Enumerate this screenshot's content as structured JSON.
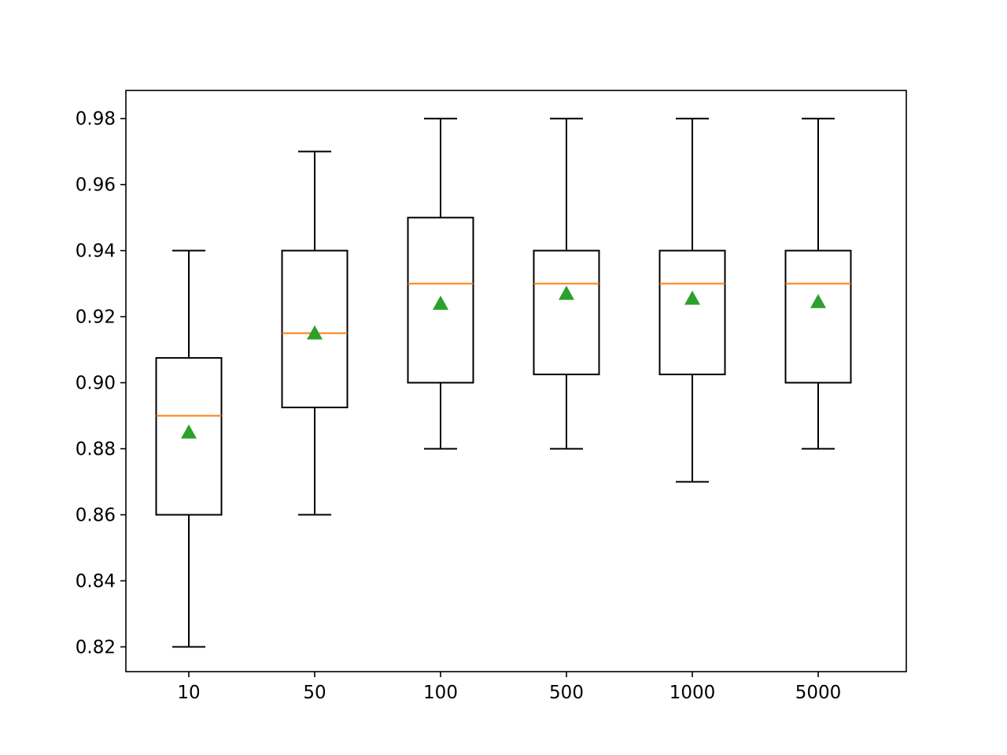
{
  "chart_data": {
    "type": "box",
    "title": "",
    "xlabel": "",
    "ylabel": "",
    "categories": [
      "10",
      "50",
      "100",
      "500",
      "1000",
      "5000"
    ],
    "boxes": [
      {
        "category": "10",
        "whisker_low": 0.82,
        "q1": 0.86,
        "median": 0.89,
        "q3": 0.9075,
        "whisker_high": 0.94,
        "mean": 0.885
      },
      {
        "category": "50",
        "whisker_low": 0.86,
        "q1": 0.8925,
        "median": 0.915,
        "q3": 0.94,
        "whisker_high": 0.97,
        "mean": 0.915
      },
      {
        "category": "100",
        "whisker_low": 0.88,
        "q1": 0.9,
        "median": 0.93,
        "q3": 0.95,
        "whisker_high": 0.98,
        "mean": 0.924
      },
      {
        "category": "500",
        "whisker_low": 0.88,
        "q1": 0.9025,
        "median": 0.93,
        "q3": 0.94,
        "whisker_high": 0.98,
        "mean": 0.927
      },
      {
        "category": "1000",
        "whisker_low": 0.87,
        "q1": 0.9025,
        "median": 0.93,
        "q3": 0.94,
        "whisker_high": 0.98,
        "mean": 0.9255
      },
      {
        "category": "5000",
        "whisker_low": 0.88,
        "q1": 0.9,
        "median": 0.93,
        "q3": 0.94,
        "whisker_high": 0.98,
        "mean": 0.9245
      }
    ],
    "ylim": [
      0.8125,
      0.9885
    ],
    "yticks": [
      "0.82",
      "0.84",
      "0.86",
      "0.88",
      "0.90",
      "0.92",
      "0.94",
      "0.96",
      "0.98"
    ],
    "grid": false,
    "legend": "none",
    "colors": {
      "box": "#000000",
      "median": "#ff7f0e",
      "mean_marker": "#2ca02c"
    }
  }
}
